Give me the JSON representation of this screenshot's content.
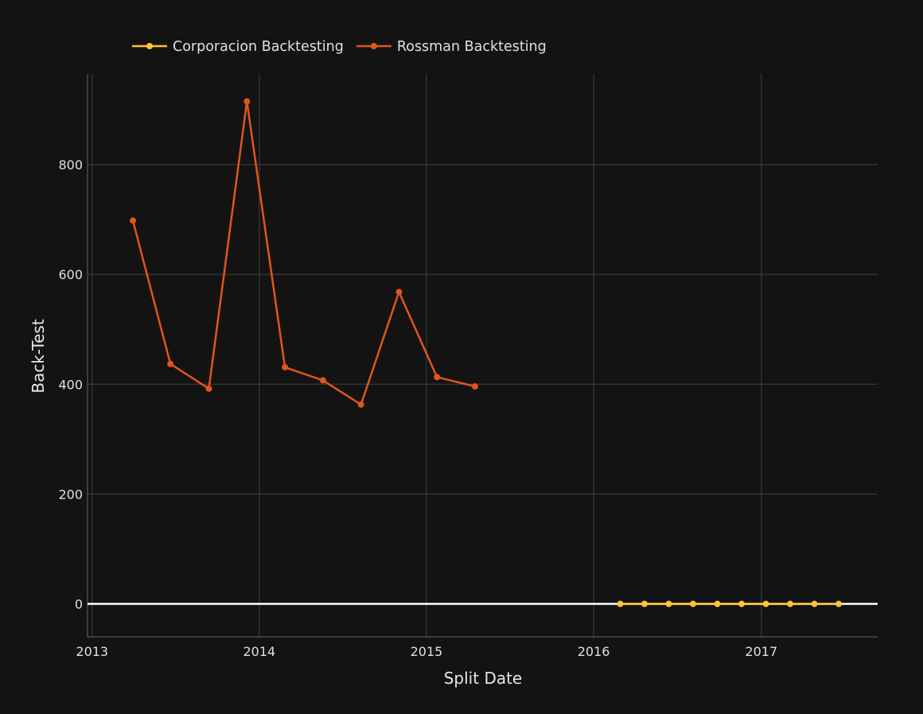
{
  "chart_data": {
    "type": "line",
    "title": "",
    "xlabel": "Split Date",
    "ylabel": "Back-Test",
    "xlim": [
      "2012-12-22",
      "2017-09-12"
    ],
    "ylim": [
      -60,
      965
    ],
    "x_ticks": [
      "2013",
      "2014",
      "2015",
      "2016",
      "2017"
    ],
    "y_ticks": [
      0,
      200,
      400,
      600,
      800
    ],
    "grid": true,
    "legend_position": "top-left",
    "series": [
      {
        "name": "Corporacion Backtesting",
        "color": "#fec337",
        "x": [
          "2016-02-28",
          "2016-04-21",
          "2016-06-13",
          "2016-08-05",
          "2016-09-27",
          "2016-11-19",
          "2017-01-11",
          "2017-03-05",
          "2017-04-27",
          "2017-06-19"
        ],
        "values": [
          0,
          0,
          0,
          0,
          0,
          0,
          0,
          0,
          0,
          0
        ]
      },
      {
        "name": "Rossman Backtesting",
        "color": "#e0551c",
        "x": [
          "2013-03-31",
          "2013-06-21",
          "2013-09-13",
          "2013-12-05",
          "2014-02-26",
          "2014-05-20",
          "2014-08-11",
          "2014-11-02",
          "2015-01-24",
          "2015-04-17"
        ],
        "values": [
          698,
          437,
          392,
          915,
          431,
          407,
          363,
          568,
          413,
          396
        ]
      }
    ]
  }
}
